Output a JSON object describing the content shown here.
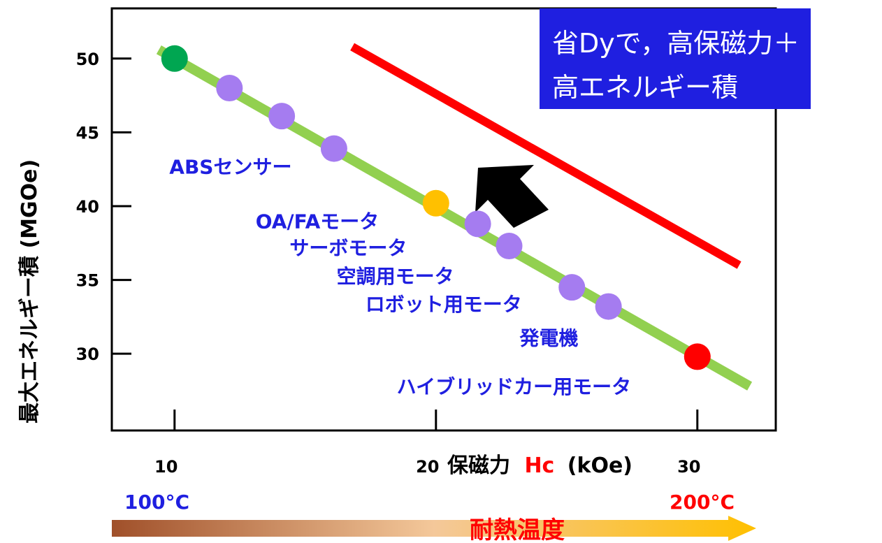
{
  "chart_data": {
    "type": "scatter",
    "xlabel": "保磁力",
    "xlabel_symbol": "Hc",
    "xlabel_unit": "(kOe)",
    "ylabel": "最大エネルギー積 (MGOe)",
    "xlim": [
      7.6,
      33.0
    ],
    "ylim": [
      24.8,
      53.4
    ],
    "x_ticks": [
      10,
      20,
      30
    ],
    "y_ticks": [
      50,
      45,
      40,
      35,
      30
    ],
    "grid": false,
    "points": [
      {
        "x": 10.0,
        "y": 50.0,
        "color": "#00a651"
      },
      {
        "x": 12.1,
        "y": 48.0,
        "color": "#a57cf0"
      },
      {
        "x": 14.1,
        "y": 46.1,
        "color": "#a57cf0"
      },
      {
        "x": 16.1,
        "y": 43.9,
        "color": "#a57cf0"
      },
      {
        "x": 20.0,
        "y": 40.2,
        "color": "#ffc000"
      },
      {
        "x": 21.6,
        "y": 38.8,
        "color": "#a57cf0"
      },
      {
        "x": 22.8,
        "y": 37.3,
        "color": "#a57cf0"
      },
      {
        "x": 25.2,
        "y": 34.5,
        "color": "#a57cf0"
      },
      {
        "x": 26.6,
        "y": 33.2,
        "color": "#a57cf0"
      },
      {
        "x": 30.0,
        "y": 29.8,
        "color": "#ff0000"
      }
    ],
    "trend_line": {
      "x": [
        9.4,
        32.0
      ],
      "y": [
        50.6,
        27.8
      ],
      "color": "#92d050"
    },
    "target_line": {
      "x": [
        16.8,
        31.6
      ],
      "y": [
        50.8,
        36.0
      ],
      "color": "#ff0000"
    },
    "arrow_color": "#000000",
    "annotations": [
      {
        "text": "ABSセンサー",
        "x": 9.8,
        "y": 42.2
      },
      {
        "text": "OA/FAモータ",
        "x": 13.1,
        "y": 38.5
      },
      {
        "text": "サーボモータ",
        "x": 14.4,
        "y": 36.7
      },
      {
        "text": "空調用モータ",
        "x": 16.2,
        "y": 34.8
      },
      {
        "text": "ロボット用モータ",
        "x": 17.3,
        "y": 32.9
      },
      {
        "text": "発電機",
        "x": 23.2,
        "y": 30.6
      },
      {
        "text": "ハイブリッドカー用モータ",
        "x": 18.5,
        "y": 27.3
      }
    ],
    "callout": {
      "lines": [
        "省Dyで，高保磁力＋",
        "高エネルギー積"
      ],
      "background": "#1f1fe0"
    },
    "temperature_axis": {
      "label": "耐熱温度",
      "low_label": "100°C",
      "high_label": "200°C",
      "gradient_from": "#a0502a",
      "gradient_to": "#ffc000"
    }
  }
}
